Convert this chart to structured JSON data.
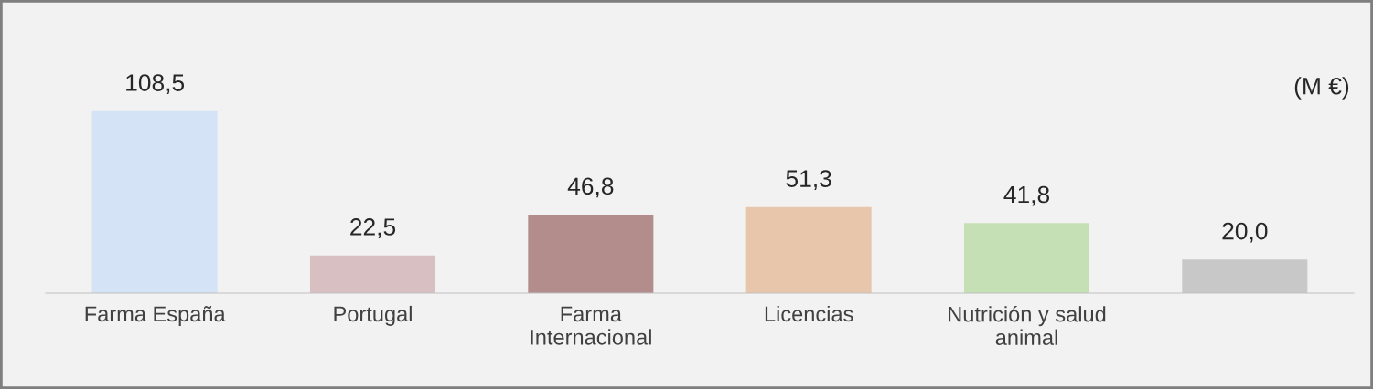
{
  "chart_data": {
    "type": "bar",
    "categories": [
      "Farma España",
      "Portugal",
      "Farma\nInternacional",
      "Licencias",
      "Nutrición y salud\nanimal",
      null
    ],
    "values": [
      108.5,
      22.5,
      46.8,
      51.3,
      41.8,
      20.0
    ],
    "value_labels": [
      "108,5",
      "22,5",
      "46,8",
      "51,3",
      "41,8",
      "20,0"
    ],
    "colors": [
      "#d5e3f7",
      "#d8c0c2",
      "#b38c8c",
      "#e8c6ab",
      "#c5e0b4",
      "#c8c8c8"
    ],
    "annotations": [
      "(M €)"
    ],
    "grid": false,
    "legend": false
  }
}
